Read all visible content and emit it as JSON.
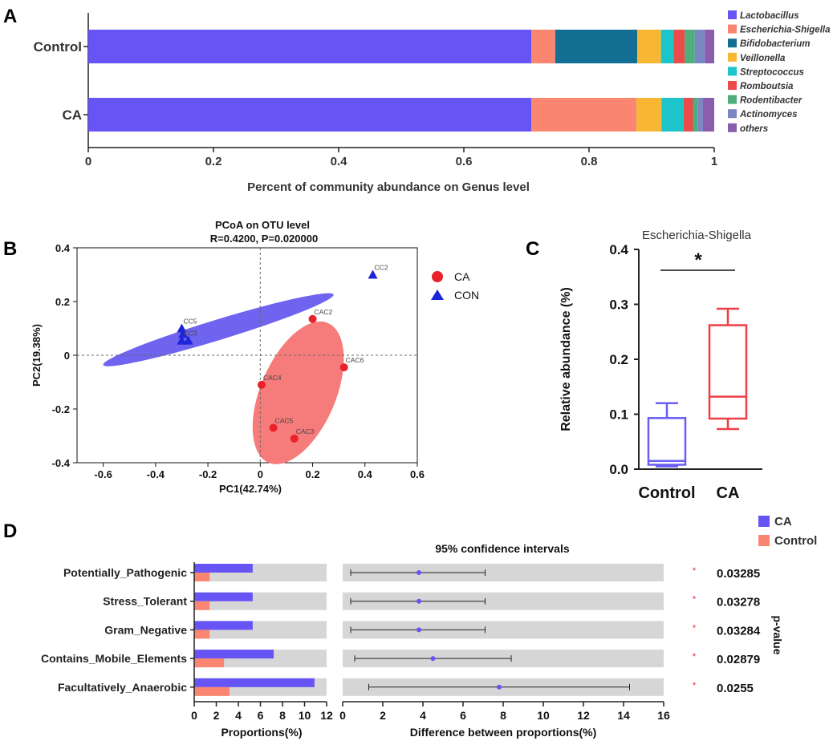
{
  "colors": {
    "lactobacillus": "#6654f4",
    "escherichia": "#fa8571",
    "bifido": "#126f93",
    "veillonella": "#f7b733",
    "strepto": "#1dc4c9",
    "rombout": "#ea4b4b",
    "rodenti": "#4fae7c",
    "actino": "#7b87c2",
    "others": "#8a5dad",
    "ca_red": "#e8212a",
    "con_blue": "#1c25d8",
    "ellipse_blue": "#6e64f0",
    "ellipse_red": "#f67b7b",
    "box_blue": "#6a5ff2",
    "box_red": "#ef3e45",
    "bg_grey": "#d6d6d6"
  },
  "chart_data": [
    {
      "id": "A",
      "type": "bar",
      "orientation": "horizontal-stacked",
      "panel_label": "A",
      "categories": [
        "Control",
        "CA"
      ],
      "series": [
        {
          "name": "Lactobacillus",
          "color_key": "lactobacillus",
          "values": [
            0.708,
            0.708
          ]
        },
        {
          "name": "Escherichia-Shigella",
          "color_key": "escherichia",
          "values": [
            0.038,
            0.168
          ]
        },
        {
          "name": "Bifidobacterium",
          "color_key": "bifido",
          "values": [
            0.131,
            0.0
          ]
        },
        {
          "name": "Veillonella",
          "color_key": "veillonella",
          "values": [
            0.038,
            0.04
          ]
        },
        {
          "name": "Streptococcus",
          "color_key": "strepto",
          "values": [
            0.02,
            0.035
          ]
        },
        {
          "name": "Romboutsia",
          "color_key": "rombout",
          "values": [
            0.018,
            0.015
          ]
        },
        {
          "name": "Rodentibacter",
          "color_key": "rodenti",
          "values": [
            0.016,
            0.008
          ]
        },
        {
          "name": "Actinomyces",
          "color_key": "actino",
          "values": [
            0.016,
            0.008
          ]
        },
        {
          "name": "others",
          "color_key": "others",
          "values": [
            0.015,
            0.018
          ]
        }
      ],
      "xlim": [
        0,
        1
      ],
      "xticks": [
        "0",
        "0.2",
        "0.4",
        "0.6",
        "0.8",
        "1"
      ],
      "xlabel": "Percent of community abundance on Genus level"
    },
    {
      "id": "B",
      "type": "scatter",
      "panel_label": "B",
      "title": "PCoA on OTU level",
      "subtitle": "R=0.4200, P=0.020000",
      "xlabel": "PC1(42.74%)",
      "ylabel": "PC2(19.38%)",
      "xlim": [
        -0.7,
        0.6
      ],
      "ylim": [
        -0.4,
        0.4
      ],
      "xticks": [
        "-0.6",
        "-0.4",
        "-0.2",
        "0",
        "0.2",
        "0.4",
        "0.6"
      ],
      "yticks": [
        "-0.4",
        "-0.2",
        "0",
        "0.2",
        "0.4"
      ],
      "legend": [
        {
          "name": "CA",
          "marker": "circle"
        },
        {
          "name": "CON",
          "marker": "triangle"
        }
      ],
      "series": [
        {
          "name": "CA",
          "points": [
            {
              "label": "CAC2",
              "x": 0.2,
              "y": 0.135
            },
            {
              "label": "CAC6",
              "x": 0.32,
              "y": -0.045
            },
            {
              "label": "CAC4",
              "x": 0.005,
              "y": -0.11
            },
            {
              "label": "CAC5",
              "x": 0.05,
              "y": -0.27
            },
            {
              "label": "CAC3",
              "x": 0.13,
              "y": -0.31
            }
          ]
        },
        {
          "name": "CON",
          "points": [
            {
              "label": "CC2",
              "x": 0.43,
              "y": 0.3
            },
            {
              "label": "CC5",
              "x": -0.3,
              "y": 0.1
            },
            {
              "label": "",
              "x": -0.295,
              "y": 0.08
            },
            {
              "label": "CC3",
              "x": -0.3,
              "y": 0.055
            },
            {
              "label": "",
              "x": -0.275,
              "y": 0.055
            }
          ]
        }
      ],
      "ellipses": [
        {
          "group": "CON",
          "cx": -0.16,
          "cy": 0.095,
          "rx": 0.46,
          "ry": 0.038,
          "angle_deg": -17
        },
        {
          "group": "CA",
          "cx": 0.145,
          "cy": -0.14,
          "rx": 0.29,
          "ry": 0.14,
          "angle_deg": -67
        }
      ]
    },
    {
      "id": "C",
      "type": "box",
      "panel_label": "C",
      "title": "Escherichia-Shigella",
      "ylabel": "Relative abundance (%)",
      "ylim": [
        0,
        0.4
      ],
      "yticks": [
        "0.0",
        "0.1",
        "0.2",
        "0.3",
        "0.4"
      ],
      "significance": "*",
      "groups": [
        {
          "name": "Control",
          "color_key": "box_blue",
          "min": 0.005,
          "q1": 0.008,
          "median": 0.015,
          "q3": 0.093,
          "max": 0.12
        },
        {
          "name": "CA",
          "color_key": "box_red",
          "min": 0.073,
          "q1": 0.092,
          "median": 0.132,
          "q3": 0.262,
          "max": 0.292
        }
      ]
    },
    {
      "id": "D",
      "type": "bar",
      "panel_label": "D",
      "ci_title": "95% confidence intervals",
      "left_xlabel": "Proportions(%)",
      "right_xlabel": "Difference between proportions(%)",
      "pvalue_label": "p-value",
      "left_xlim": [
        0,
        12
      ],
      "right_xlim": [
        0,
        16
      ],
      "left_xticks": [
        "0",
        "2",
        "4",
        "6",
        "8",
        "10",
        "12"
      ],
      "right_xticks": [
        "0",
        "2",
        "4",
        "6",
        "8",
        "10",
        "12",
        "14",
        "16"
      ],
      "legend": [
        {
          "name": "CA",
          "color_key": "lactobacillus"
        },
        {
          "name": "Control",
          "color_key": "escherichia"
        }
      ],
      "rows": [
        {
          "label": "Potentially_Pathogenic",
          "ca": 5.3,
          "control": 1.4,
          "diff": 3.8,
          "ci_low": 0.4,
          "ci_high": 7.1,
          "star": "*",
          "p": "0.03285"
        },
        {
          "label": "Stress_Tolerant",
          "ca": 5.3,
          "control": 1.4,
          "diff": 3.8,
          "ci_low": 0.4,
          "ci_high": 7.1,
          "star": "*",
          "p": "0.03278"
        },
        {
          "label": "Gram_Negative",
          "ca": 5.3,
          "control": 1.4,
          "diff": 3.8,
          "ci_low": 0.4,
          "ci_high": 7.1,
          "star": "*",
          "p": "0.03284"
        },
        {
          "label": "Contains_Mobile_Elements",
          "ca": 7.2,
          "control": 2.7,
          "diff": 4.5,
          "ci_low": 0.6,
          "ci_high": 8.4,
          "star": "*",
          "p": "0.02879"
        },
        {
          "label": "Facultatively_Anaerobic",
          "ca": 10.9,
          "control": 3.2,
          "diff": 7.8,
          "ci_low": 1.3,
          "ci_high": 14.3,
          "star": "*",
          "p": "0.0255"
        }
      ]
    }
  ]
}
